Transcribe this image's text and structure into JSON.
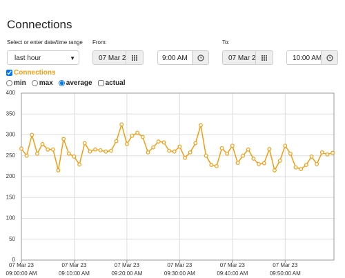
{
  "header": {
    "title": "Connections"
  },
  "form": {
    "range_label": "Select or enter date/time range",
    "from_label": "From:",
    "to_label": "To:",
    "range_select": "last hour",
    "from_date": "07 Mar 2",
    "from_time": "9:00 AM",
    "to_date": "07 Mar 2",
    "to_time": "10:00 AM",
    "series_toggle": "Connections",
    "options": [
      "min",
      "max",
      "average",
      "actual"
    ]
  },
  "chart_data": {
    "type": "line",
    "x": [
      "2023-03-07T09:00:00",
      "2023-03-07T09:01:00",
      "2023-03-07T09:02:00",
      "2023-03-07T09:03:00",
      "2023-03-07T09:04:00",
      "2023-03-07T09:05:00",
      "2023-03-07T09:06:00",
      "2023-03-07T09:07:00",
      "2023-03-07T09:08:00",
      "2023-03-07T09:09:00",
      "2023-03-07T09:10:00",
      "2023-03-07T09:11:00",
      "2023-03-07T09:12:00",
      "2023-03-07T09:13:00",
      "2023-03-07T09:14:00",
      "2023-03-07T09:15:00",
      "2023-03-07T09:16:00",
      "2023-03-07T09:17:00",
      "2023-03-07T09:18:00",
      "2023-03-07T09:19:00",
      "2023-03-07T09:20:00",
      "2023-03-07T09:21:00",
      "2023-03-07T09:22:00",
      "2023-03-07T09:23:00",
      "2023-03-07T09:24:00",
      "2023-03-07T09:25:00",
      "2023-03-07T09:26:00",
      "2023-03-07T09:27:00",
      "2023-03-07T09:28:00",
      "2023-03-07T09:29:00",
      "2023-03-07T09:30:00",
      "2023-03-07T09:31:00",
      "2023-03-07T09:32:00",
      "2023-03-07T09:33:00",
      "2023-03-07T09:34:00",
      "2023-03-07T09:35:00",
      "2023-03-07T09:36:00",
      "2023-03-07T09:37:00",
      "2023-03-07T09:38:00",
      "2023-03-07T09:39:00",
      "2023-03-07T09:40:00",
      "2023-03-07T09:41:00",
      "2023-03-07T09:42:00",
      "2023-03-07T09:43:00",
      "2023-03-07T09:44:00",
      "2023-03-07T09:45:00",
      "2023-03-07T09:46:00",
      "2023-03-07T09:47:00",
      "2023-03-07T09:48:00",
      "2023-03-07T09:49:00",
      "2023-03-07T09:50:00",
      "2023-03-07T09:51:00",
      "2023-03-07T09:52:00",
      "2023-03-07T09:53:00",
      "2023-03-07T09:54:00",
      "2023-03-07T09:55:00",
      "2023-03-07T09:56:00",
      "2023-03-07T09:57:00",
      "2023-03-07T09:58:00",
      "2023-03-07T09:59:00"
    ],
    "series": [
      {
        "name": "Connections",
        "color": "#f39c12",
        "values": [
          267,
          250,
          300,
          255,
          278,
          265,
          265,
          215,
          290,
          255,
          248,
          229,
          280,
          260,
          265,
          263,
          260,
          262,
          285,
          325,
          278,
          298,
          305,
          295,
          258,
          270,
          284,
          282,
          262,
          260,
          272,
          245,
          258,
          280,
          323,
          250,
          228,
          225,
          268,
          255,
          274,
          233,
          250,
          265,
          243,
          230,
          232,
          266,
          215,
          238,
          274,
          255,
          222,
          218,
          228,
          248,
          230,
          258,
          253,
          257
        ]
      }
    ],
    "xlim": [
      "2023-03-07T09:00:00",
      "2023-03-07T09:59:15"
    ],
    "xticks": [
      {
        "value": "2023-03-07T09:00:00",
        "label": "07 Mar 23\n09:00:00 AM"
      },
      {
        "value": "2023-03-07T09:10:00",
        "label": "07 Mar 23\n09:10:00 AM"
      },
      {
        "value": "2023-03-07T09:20:00",
        "label": "07 Mar 23\n09:20:00 AM"
      },
      {
        "value": "2023-03-07T09:30:00",
        "label": "07 Mar 23\n09:30:00 AM"
      },
      {
        "value": "2023-03-07T09:40:00",
        "label": "07 Mar 23\n09:40:00 AM"
      },
      {
        "value": "2023-03-07T09:50:00",
        "label": "07 Mar 23\n09:50:00 AM"
      }
    ],
    "ylim": [
      0,
      400
    ],
    "yticks": [
      0,
      50,
      100,
      150,
      200,
      250,
      300,
      350,
      400
    ],
    "grid": true
  }
}
